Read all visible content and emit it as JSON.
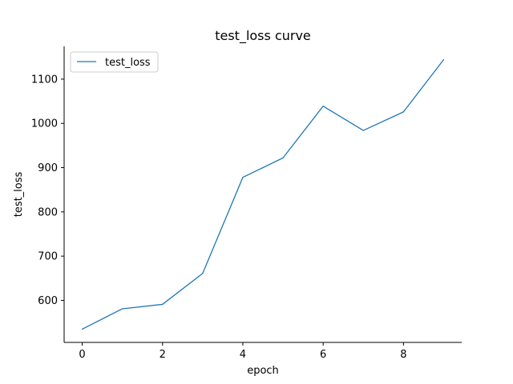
{
  "chart_data": {
    "type": "line",
    "title": "test_loss curve",
    "xlabel": "epoch",
    "ylabel": "test_loss",
    "x": [
      0,
      1,
      2,
      3,
      4,
      5,
      6,
      7,
      8,
      9
    ],
    "series": [
      {
        "name": "test_loss",
        "color": "#1f77b4",
        "values": [
          535,
          581,
          591,
          661,
          878,
          922,
          1039,
          984,
          1026,
          1144
        ]
      }
    ],
    "xlim": [
      -0.45,
      9.45
    ],
    "ylim": [
      505,
      1174
    ],
    "xticks": [
      0,
      2,
      4,
      6,
      8
    ],
    "yticks": [
      600,
      700,
      800,
      900,
      1000,
      1100
    ],
    "grid": false,
    "legend": "top-left"
  }
}
